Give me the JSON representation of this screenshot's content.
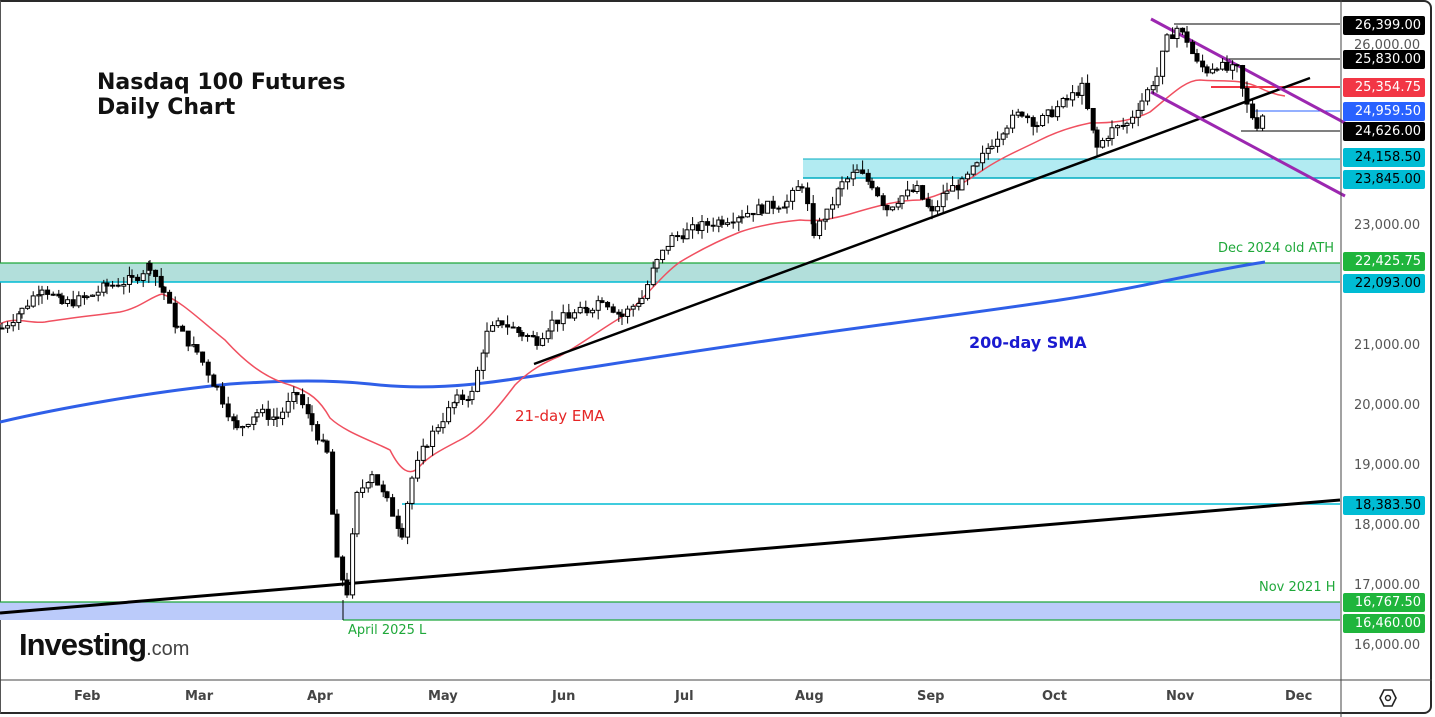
{
  "title": {
    "line1": "Nasdaq 100 Futures",
    "line2": "Daily Chart"
  },
  "watermark": {
    "brand": "Investing",
    "suffix": ".com"
  },
  "annotations": {
    "ema_label": "21-day EMA",
    "sma_label": "200-day SMA",
    "old_ath": "Dec 2024 old ATH",
    "april_low": "April 2025 L",
    "nov2021_high": "Nov 2021 H"
  },
  "price_axis": {
    "ticks": [
      "26,000.00",
      "23,000.00",
      "21,000.00",
      "20,000.00",
      "19,000.00",
      "18,000.00",
      "17,000.00",
      "16,000.00"
    ]
  },
  "price_labels": [
    {
      "text": "26,399.00",
      "bg": "#000000",
      "fg": "#ffffff"
    },
    {
      "text": "25,830.00",
      "bg": "#000000",
      "fg": "#ffffff"
    },
    {
      "text": "25,354.75",
      "bg": "#f23645",
      "fg": "#ffffff"
    },
    {
      "text": "24,959.50",
      "bg": "#2962ff",
      "fg": "#ffffff"
    },
    {
      "text": "24,626.00",
      "bg": "#000000",
      "fg": "#ffffff"
    },
    {
      "text": "24,158.50",
      "bg": "#00bcd4",
      "fg": "#000000"
    },
    {
      "text": "23,845.00",
      "bg": "#00bcd4",
      "fg": "#000000"
    },
    {
      "text": "22,425.75",
      "bg": "#1fb53c",
      "fg": "#ffffff"
    },
    {
      "text": "22,093.00",
      "bg": "#00bcd4",
      "fg": "#000000"
    },
    {
      "text": "18,383.50",
      "bg": "#00bcd4",
      "fg": "#000000"
    },
    {
      "text": "16,767.50",
      "bg": "#1fb53c",
      "fg": "#ffffff"
    },
    {
      "text": "16,460.00",
      "bg": "#1fb53c",
      "fg": "#ffffff"
    }
  ],
  "time_axis": {
    "months": [
      "Feb",
      "Mar",
      "Apr",
      "May",
      "Jun",
      "Jul",
      "Aug",
      "Sep",
      "Oct",
      "Nov",
      "Dec"
    ]
  },
  "colors": {
    "ema": "#f05060",
    "sma": "#2f5fe8",
    "channel": "#9c27b0",
    "trend": "#000000",
    "zone_green": "#b2dfdb",
    "zone_cyan": "#b2ebf2",
    "zone_blue": "#bbcbfa"
  },
  "chart_data": {
    "type": "candlestick",
    "title": "Nasdaq 100 Futures Daily Chart",
    "xlabel": "",
    "ylabel": "",
    "ylim": [
      15900,
      26700
    ],
    "x_categories": [
      "Feb",
      "Mar",
      "Apr",
      "May",
      "Jun",
      "Jul",
      "Aug",
      "Sep",
      "Oct",
      "Nov",
      "Dec"
    ],
    "approx_closes_monthly": [
      {
        "month": "Jan-end",
        "close": 21500
      },
      {
        "month": "Feb (mid)",
        "close": 22200
      },
      {
        "month": "Mar (start)",
        "close": 21000
      },
      {
        "month": "Apr (start)",
        "close": 20000
      },
      {
        "month": "Apr (low)",
        "close": 16460
      },
      {
        "month": "May (start)",
        "close": 19900
      },
      {
        "month": "Jun (start)",
        "close": 21400
      },
      {
        "month": "Jul (start)",
        "close": 22800
      },
      {
        "month": "Aug (start)",
        "close": 23100
      },
      {
        "month": "Sep (start)",
        "close": 23400
      },
      {
        "month": "Oct (start)",
        "close": 24800
      },
      {
        "month": "Nov (start)",
        "close": 26100
      },
      {
        "month": "Nov (late)",
        "close": 24900
      }
    ],
    "horizontal_levels": [
      26399.0,
      25830.0,
      25354.75,
      24959.5,
      24626.0,
      24158.5,
      23845.0,
      22425.75,
      22093.0,
      18383.5,
      16767.5,
      16460.0
    ],
    "zones": [
      {
        "from": 23845.0,
        "to": 24158.5,
        "color": "cyan"
      },
      {
        "from": 22093.0,
        "to": 22425.75,
        "color": "green",
        "label": "Dec 2024 old ATH"
      },
      {
        "from": 16460.0,
        "to": 16767.5,
        "color": "blue",
        "label": "Nov 2021 H / April 2025 L"
      }
    ],
    "indicators": [
      {
        "name": "21-day EMA",
        "color": "red"
      },
      {
        "name": "200-day SMA",
        "color": "blue",
        "start": 19800,
        "end": 22425
      }
    ],
    "trendlines": [
      "long-term support from ~16,700 (Jan) to ~18,400 (Dec)",
      "support from late May low ~21,000 to ~25,300 (Nov)",
      "descending channel (purple) in Nov"
    ],
    "legend_position": "none",
    "grid": false
  }
}
